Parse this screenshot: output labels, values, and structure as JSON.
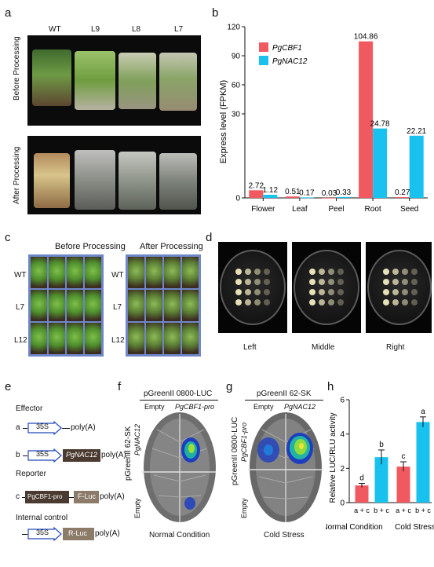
{
  "panels": {
    "a": "a",
    "b": "b",
    "c": "c",
    "d": "d",
    "e": "e",
    "f": "f",
    "g": "g",
    "h": "h"
  },
  "panel_a": {
    "columns": [
      "WT",
      "L9",
      "L8",
      "L7"
    ],
    "row_labels": [
      "Before Processing",
      "After Processing"
    ]
  },
  "chart_data": [
    {
      "type": "bar",
      "panel": "b",
      "categories": [
        "Flower",
        "Leaf",
        "Peel",
        "Root",
        "Seed"
      ],
      "series": [
        {
          "name": "PgCBF1",
          "color": "#f0595f",
          "values": [
            2.72,
            0.51,
            0.03,
            104.86,
            0.27
          ]
        },
        {
          "name": "PgNAC12",
          "color": "#19c2ee",
          "values": [
            1.12,
            0.17,
            0.33,
            24.78,
            22.21
          ]
        }
      ],
      "data_labels": [
        [
          "2.72",
          "0.51",
          "0.03",
          "104.86",
          "0.27"
        ],
        [
          "1.12",
          "0.17",
          "0.33",
          "24.78",
          "22.21"
        ]
      ],
      "yticks": [
        "0",
        "30",
        "60",
        "90",
        "120"
      ],
      "ylabel": "Express level (FPKM)",
      "legend": "top-left"
    },
    {
      "type": "bar",
      "panel": "h",
      "categories": [
        "a + c",
        "b + c",
        "a + c",
        "b + c"
      ],
      "groups": [
        "Normal Condition",
        "Cold Stress"
      ],
      "series": [
        {
          "name": "",
          "values": [
            1.0,
            2.65,
            2.1,
            4.7
          ],
          "errors": [
            0.12,
            0.42,
            0.28,
            0.3
          ]
        }
      ],
      "colors": [
        "#f0595f",
        "#19c2ee",
        "#f0595f",
        "#19c2ee"
      ],
      "letters": [
        "d",
        "b",
        "c",
        "a"
      ],
      "yticks": [
        "0",
        "2",
        "4",
        "6"
      ],
      "ylabel": "Relative LUC/RLU activity",
      "ylim": [
        0,
        6
      ]
    }
  ],
  "panel_c": {
    "titles": [
      "Before Processing",
      "After Processing"
    ],
    "row_labels": [
      "WT",
      "L7",
      "L12"
    ]
  },
  "panel_d": {
    "labels": [
      "Left",
      "Middle",
      "Right"
    ]
  },
  "panel_e": {
    "effector": "Effector",
    "reporter": "Reporter",
    "internal": "Internal control",
    "a": "a",
    "b": "b",
    "c": "c",
    "p35s": "35S",
    "polyA": "poly(A)",
    "nac": "PgNAC12",
    "cbf_pro": "PgCBF1-pro",
    "fluc": "F-Luc",
    "rluc": "R-Luc"
  },
  "panel_f": {
    "top": "pGreenII 0800-LUC",
    "col1": "Empty",
    "col2": "PgCBF1-pro",
    "left_vec": "pGreenII 62-SK",
    "row1": "PgNAC12",
    "row2": "Empty",
    "bottom": "Normal Condition"
  },
  "panel_g": {
    "top": "pGreenII 62-SK",
    "col1": "Empty",
    "col2": "PgNAC12",
    "left_vec": "pGreenII 0800-LUC",
    "row1": "PgCBF1-pro",
    "row2": "Empty",
    "bottom": "Cold Stress"
  }
}
